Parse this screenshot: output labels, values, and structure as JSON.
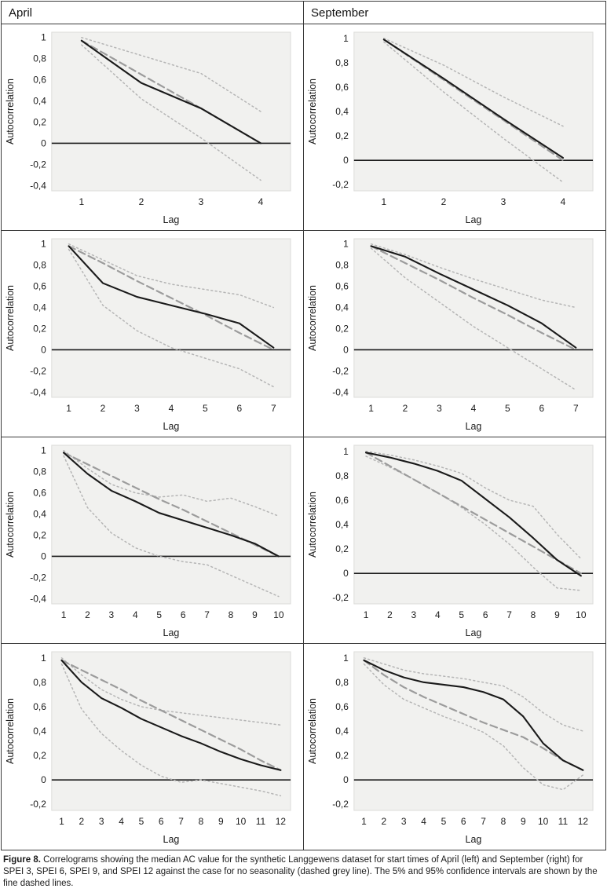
{
  "headers": [
    "April",
    "September"
  ],
  "caption": {
    "label": "Figure 8.",
    "text": "Correlograms showing the median AC value for the synthetic Langgewens dataset for start times of April (left) and September (right) for SPEI 3, SPEI 6, SPEI 9, and SPEI 12 against the case for no seasonality (dashed grey line). The 5% and 95% confidence intervals are shown by the fine dashed lines."
  },
  "colors": {
    "median_line": "#1a1a1a",
    "no_seasonality_line": "#9c9c9c",
    "confidence_line": "#b5b5b5",
    "plot_background": "#f1f1ef",
    "plot_border": "#dcdcda",
    "zero_axis": "#1a1a1a",
    "tick_text": "#1a1a1a"
  },
  "chart_data": [
    {
      "type": "line",
      "panel": "April",
      "spei": "SPEI 3",
      "xlabel": "Lag",
      "ylabel": "Autocorrelation",
      "x": [
        1,
        2,
        3,
        4
      ],
      "ylim": [
        -0.4,
        1
      ],
      "ytick_values": [
        1,
        0.8,
        0.6,
        0.4,
        0.2,
        0,
        -0.2,
        -0.4
      ],
      "ytick_labels": [
        "1",
        "0,8",
        "0,6",
        "0,4",
        "0,2",
        "0",
        "-0,2",
        "-0,4"
      ],
      "series": [
        {
          "name": "95% CI",
          "style": "dotted",
          "values": [
            1.0,
            0.83,
            0.66,
            0.3
          ]
        },
        {
          "name": "5% CI",
          "style": "dotted",
          "values": [
            0.93,
            0.42,
            0.05,
            -0.35
          ]
        },
        {
          "name": "no seasonality",
          "style": "dashed",
          "values": [
            0.97,
            0.65,
            0.33,
            0.0
          ]
        },
        {
          "name": "median AC",
          "style": "solid",
          "values": [
            0.97,
            0.57,
            0.33,
            0.0
          ]
        }
      ]
    },
    {
      "type": "line",
      "panel": "September",
      "spei": "SPEI 3",
      "xlabel": "Lag",
      "ylabel": "Autocorrelation",
      "x": [
        1,
        2,
        3,
        4
      ],
      "ylim": [
        -0.2,
        1
      ],
      "ytick_values": [
        1,
        0.8,
        0.6,
        0.4,
        0.2,
        0,
        -0.2
      ],
      "ytick_labels": [
        "1",
        "0,8",
        "0,6",
        "0,4",
        "0,2",
        "0",
        "-0,2"
      ],
      "series": [
        {
          "name": "95% CI",
          "style": "dotted",
          "values": [
            1.0,
            0.78,
            0.52,
            0.28
          ]
        },
        {
          "name": "5% CI",
          "style": "dotted",
          "values": [
            0.97,
            0.56,
            0.18,
            -0.18
          ]
        },
        {
          "name": "no seasonality",
          "style": "dashed",
          "values": [
            0.99,
            0.66,
            0.33,
            0.0
          ]
        },
        {
          "name": "median AC",
          "style": "solid",
          "values": [
            0.99,
            0.67,
            0.34,
            0.02
          ]
        }
      ]
    },
    {
      "type": "line",
      "panel": "April",
      "spei": "SPEI 6",
      "xlabel": "Lag",
      "ylabel": "Autocorrelation",
      "x": [
        1,
        2,
        3,
        4,
        5,
        6,
        7
      ],
      "ylim": [
        -0.4,
        1
      ],
      "ytick_values": [
        1,
        0.8,
        0.6,
        0.4,
        0.2,
        0,
        -0.2,
        -0.4
      ],
      "ytick_labels": [
        "1",
        "0,8",
        "0,6",
        "0,4",
        "0,2",
        "0",
        "-0,2",
        "-0,4"
      ],
      "series": [
        {
          "name": "95% CI",
          "style": "dotted",
          "values": [
            1.0,
            0.85,
            0.7,
            0.62,
            0.57,
            0.52,
            0.4
          ]
        },
        {
          "name": "5% CI",
          "style": "dotted",
          "values": [
            0.95,
            0.42,
            0.18,
            0.02,
            -0.08,
            -0.18,
            -0.35
          ]
        },
        {
          "name": "no seasonality",
          "style": "dashed",
          "values": [
            0.98,
            0.82,
            0.65,
            0.49,
            0.33,
            0.16,
            0.0
          ]
        },
        {
          "name": "median AC",
          "style": "solid",
          "values": [
            0.98,
            0.63,
            0.5,
            0.42,
            0.34,
            0.25,
            0.02
          ]
        }
      ]
    },
    {
      "type": "line",
      "panel": "September",
      "spei": "SPEI 6",
      "xlabel": "Lag",
      "ylabel": "Autocorrelation",
      "x": [
        1,
        2,
        3,
        4,
        5,
        6,
        7
      ],
      "ylim": [
        -0.4,
        1
      ],
      "ytick_values": [
        1,
        0.8,
        0.6,
        0.4,
        0.2,
        0,
        -0.2,
        -0.4
      ],
      "ytick_labels": [
        "1",
        "0,8",
        "0,6",
        "0,4",
        "0,2",
        "0",
        "-0,2",
        "-0,4"
      ],
      "series": [
        {
          "name": "95% CI",
          "style": "dotted",
          "values": [
            1.0,
            0.9,
            0.78,
            0.67,
            0.57,
            0.47,
            0.4
          ]
        },
        {
          "name": "5% CI",
          "style": "dotted",
          "values": [
            0.96,
            0.68,
            0.45,
            0.22,
            0.02,
            -0.18,
            -0.38
          ]
        },
        {
          "name": "no seasonality",
          "style": "dashed",
          "values": [
            0.98,
            0.82,
            0.66,
            0.49,
            0.33,
            0.16,
            0.0
          ]
        },
        {
          "name": "median AC",
          "style": "solid",
          "values": [
            0.98,
            0.88,
            0.72,
            0.57,
            0.42,
            0.25,
            0.02
          ]
        }
      ]
    },
    {
      "type": "line",
      "panel": "April",
      "spei": "SPEI 9",
      "xlabel": "Lag",
      "ylabel": "Autocorrelation",
      "x": [
        1,
        2,
        3,
        4,
        5,
        6,
        7,
        8,
        9,
        10
      ],
      "ylim": [
        -0.4,
        1
      ],
      "ytick_values": [
        1,
        0.8,
        0.6,
        0.4,
        0.2,
        0,
        -0.2,
        -0.4
      ],
      "ytick_labels": [
        "1",
        "0,8",
        "0,6",
        "0,4",
        "0,2",
        "0",
        "-0,2",
        "-0,4"
      ],
      "series": [
        {
          "name": "95% CI",
          "style": "dotted",
          "values": [
            1.0,
            0.83,
            0.68,
            0.6,
            0.56,
            0.58,
            0.52,
            0.55,
            0.47,
            0.38
          ]
        },
        {
          "name": "5% CI",
          "style": "dotted",
          "values": [
            0.95,
            0.46,
            0.22,
            0.08,
            0.0,
            -0.05,
            -0.08,
            -0.18,
            -0.28,
            -0.38
          ]
        },
        {
          "name": "no seasonality",
          "style": "dashed",
          "values": [
            0.98,
            0.87,
            0.76,
            0.65,
            0.54,
            0.44,
            0.33,
            0.22,
            0.11,
            0.0
          ]
        },
        {
          "name": "median AC",
          "style": "solid",
          "values": [
            0.98,
            0.78,
            0.62,
            0.52,
            0.41,
            0.34,
            0.27,
            0.2,
            0.12,
            0.0
          ]
        }
      ]
    },
    {
      "type": "line",
      "panel": "September",
      "spei": "SPEI 9",
      "xlabel": "Lag",
      "ylabel": "Autocorrelation",
      "x": [
        1,
        2,
        3,
        4,
        5,
        6,
        7,
        8,
        9,
        10
      ],
      "ylim": [
        -0.2,
        1
      ],
      "ytick_values": [
        1,
        0.8,
        0.6,
        0.4,
        0.2,
        0,
        -0.2
      ],
      "ytick_labels": [
        "1",
        "0,8",
        "0,6",
        "0,4",
        "0,2",
        "0",
        "-0,2"
      ],
      "series": [
        {
          "name": "95% CI",
          "style": "dotted",
          "values": [
            1.0,
            0.97,
            0.93,
            0.88,
            0.82,
            0.7,
            0.6,
            0.55,
            0.32,
            0.12
          ]
        },
        {
          "name": "5% CI",
          "style": "dotted",
          "values": [
            0.96,
            0.87,
            0.77,
            0.66,
            0.54,
            0.4,
            0.24,
            0.05,
            -0.12,
            -0.14
          ]
        },
        {
          "name": "no seasonality",
          "style": "dashed",
          "values": [
            0.99,
            0.88,
            0.77,
            0.66,
            0.55,
            0.44,
            0.33,
            0.22,
            0.11,
            0.0
          ]
        },
        {
          "name": "median AC",
          "style": "solid",
          "values": [
            0.99,
            0.95,
            0.9,
            0.84,
            0.76,
            0.61,
            0.46,
            0.29,
            0.11,
            -0.02
          ]
        }
      ]
    },
    {
      "type": "line",
      "panel": "April",
      "spei": "SPEI 12",
      "xlabel": "Lag",
      "ylabel": "Autocorrelation",
      "x": [
        1,
        2,
        3,
        4,
        5,
        6,
        7,
        8,
        9,
        10,
        11,
        12
      ],
      "ylim": [
        -0.2,
        1
      ],
      "ytick_values": [
        1,
        0.8,
        0.6,
        0.4,
        0.2,
        0,
        -0.2
      ],
      "ytick_labels": [
        "1",
        "0,8",
        "0,6",
        "0,4",
        "0,2",
        "0",
        "-0,2"
      ],
      "series": [
        {
          "name": "95% CI",
          "style": "dotted",
          "values": [
            1.0,
            0.86,
            0.74,
            0.66,
            0.6,
            0.57,
            0.55,
            0.53,
            0.51,
            0.49,
            0.47,
            0.45
          ]
        },
        {
          "name": "5% CI",
          "style": "dotted",
          "values": [
            0.95,
            0.58,
            0.38,
            0.24,
            0.12,
            0.03,
            -0.02,
            0.0,
            -0.03,
            -0.06,
            -0.09,
            -0.13
          ]
        },
        {
          "name": "no seasonality",
          "style": "dashed",
          "values": [
            0.98,
            0.9,
            0.82,
            0.74,
            0.65,
            0.57,
            0.49,
            0.41,
            0.33,
            0.25,
            0.16,
            0.08
          ]
        },
        {
          "name": "median AC",
          "style": "solid",
          "values": [
            0.98,
            0.8,
            0.67,
            0.59,
            0.5,
            0.43,
            0.36,
            0.3,
            0.23,
            0.17,
            0.12,
            0.08
          ]
        }
      ]
    },
    {
      "type": "line",
      "panel": "September",
      "spei": "SPEI 12",
      "xlabel": "Lag",
      "ylabel": "Autocorrelation",
      "x": [
        1,
        2,
        3,
        4,
        5,
        6,
        7,
        8,
        9,
        10,
        11,
        12
      ],
      "ylim": [
        -0.2,
        1
      ],
      "ytick_values": [
        1,
        0.8,
        0.6,
        0.4,
        0.2,
        0,
        -0.2
      ],
      "ytick_labels": [
        "1",
        "0,8",
        "0,6",
        "0,4",
        "0,2",
        "0",
        "-0,2"
      ],
      "series": [
        {
          "name": "95% CI",
          "style": "dotted",
          "values": [
            1.0,
            0.95,
            0.9,
            0.87,
            0.85,
            0.83,
            0.8,
            0.77,
            0.68,
            0.55,
            0.45,
            0.4
          ]
        },
        {
          "name": "5% CI",
          "style": "dotted",
          "values": [
            0.95,
            0.78,
            0.66,
            0.59,
            0.52,
            0.46,
            0.39,
            0.28,
            0.1,
            -0.04,
            -0.08,
            0.04
          ]
        },
        {
          "name": "no seasonality",
          "style": "dashed",
          "values": [
            0.98,
            0.86,
            0.76,
            0.68,
            0.61,
            0.54,
            0.47,
            0.41,
            0.35,
            0.26,
            0.16,
            0.08
          ]
        },
        {
          "name": "median AC",
          "style": "solid",
          "values": [
            0.98,
            0.9,
            0.84,
            0.8,
            0.78,
            0.76,
            0.72,
            0.66,
            0.52,
            0.3,
            0.16,
            0.08
          ]
        }
      ]
    }
  ]
}
